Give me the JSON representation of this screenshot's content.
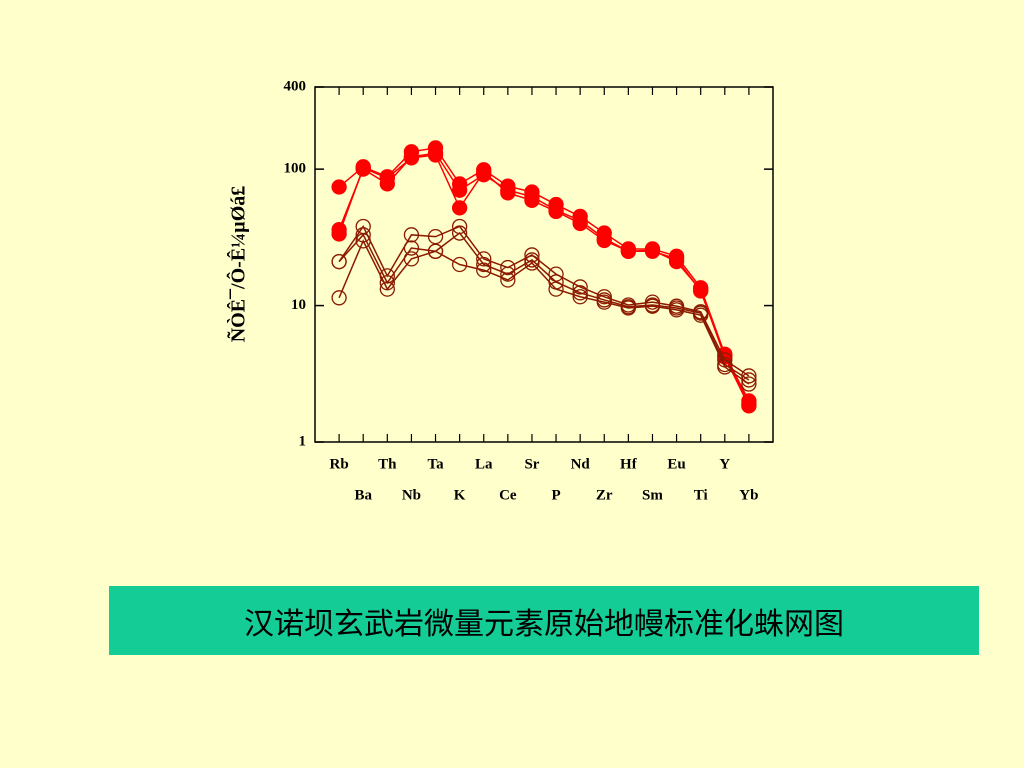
{
  "chart_data": {
    "type": "line",
    "y_label": "ÑÒÊ¯/Ô-Ê¼µØá£",
    "caption": "汉诺坝玄武岩微量元素原始地幔标准化蛛网图",
    "categories": [
      "Rb",
      "Ba",
      "Th",
      "Nb",
      "Ta",
      "K",
      "La",
      "Ce",
      "Sr",
      "P",
      "Nd",
      "Zr",
      "Hf",
      "Sm",
      "Eu",
      "Ti",
      "Y",
      "Yb"
    ],
    "log_scale": true,
    "ylim": [
      1,
      400
    ],
    "yticks": [
      1,
      10,
      100,
      400
    ],
    "series": [
      {
        "color": "#ff0000",
        "filled": true,
        "values": [
          74,
          104,
          88,
          134,
          143,
          78,
          99,
          75,
          68,
          55,
          45,
          34,
          26,
          26,
          23,
          13.5,
          4.4,
          2.0
        ]
      },
      {
        "color": "#ff0000",
        "filled": true,
        "values": [
          36,
          100,
          78,
          123,
          131,
          70,
          91,
          70,
          63,
          50,
          42,
          31,
          25,
          25,
          22,
          12.8,
          4.3,
          1.9
        ]
      },
      {
        "color": "#ff0000",
        "filled": true,
        "values": [
          33.5,
          102,
          86,
          121,
          127,
          52,
          95,
          67,
          59,
          49,
          40,
          30,
          25,
          25.5,
          21,
          13,
          4.2,
          1.84
        ]
      },
      {
        "color": "#8b1a00",
        "filled": false,
        "values": [
          21,
          38,
          16.5,
          33,
          32,
          38,
          22,
          19,
          23.5,
          17,
          13.7,
          11.6,
          10.1,
          10.6,
          9.9,
          9.0,
          4.0,
          3.05
        ]
      },
      {
        "color": "#8b1a00",
        "filled": false,
        "values": [
          21,
          33,
          14.7,
          26.4,
          25,
          34,
          20,
          17,
          21.6,
          14.9,
          12.4,
          11,
          9.8,
          10.1,
          9.6,
          8.8,
          3.7,
          2.85
        ]
      },
      {
        "color": "#8b1a00",
        "filled": false,
        "values": [
          11.4,
          29.8,
          13.2,
          22,
          25,
          20,
          18.2,
          15.4,
          20.5,
          13.2,
          11.6,
          10.6,
          9.6,
          9.9,
          9.3,
          8.5,
          3.55,
          2.66
        ]
      }
    ]
  }
}
